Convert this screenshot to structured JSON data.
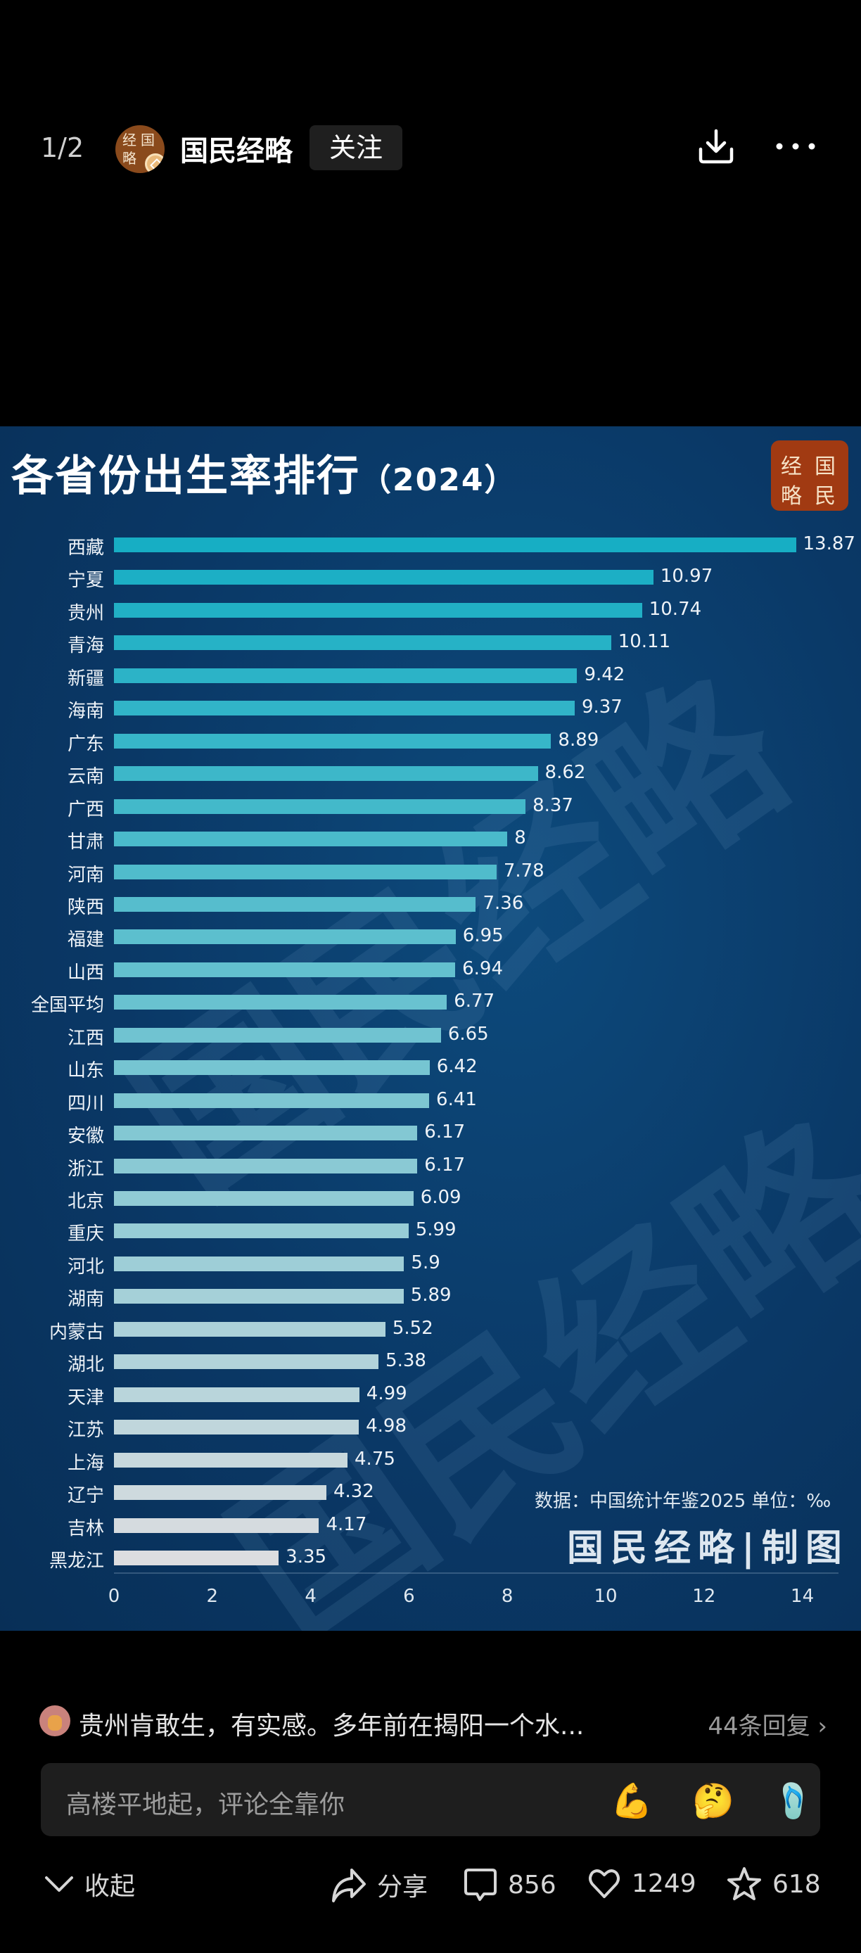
{
  "topbar": {
    "page_indicator": "1/2",
    "avatar_chars": [
      "经",
      "国",
      "略"
    ],
    "author": "国民经略",
    "follow_label": "关注",
    "icons": [
      "download-icon",
      "more-icon"
    ]
  },
  "chart": {
    "title": "各省份出生率排行",
    "title_year": "（2024）",
    "logo_chars": [
      "经",
      "国",
      "略",
      "民"
    ],
    "source": "数据：中国统计年鉴2025 单位：‰",
    "maker": "国民经略|制图",
    "watermark": "国民经略",
    "colors": {
      "background": "#0a3866",
      "bar_top": "#17aec4",
      "bar_bottom": "#dcdde0"
    }
  },
  "chart_data": {
    "type": "bar",
    "orientation": "horizontal",
    "title": "各省份出生率排行（2024）",
    "xlabel": "",
    "ylabel": "",
    "unit": "‰",
    "source": "数据：中国统计年鉴2025",
    "xlim": [
      0,
      14
    ],
    "xticks": [
      0,
      2,
      4,
      6,
      8,
      10,
      12,
      14
    ],
    "grid": false,
    "legend": null,
    "categories": [
      "西藏",
      "宁夏",
      "贵州",
      "青海",
      "新疆",
      "海南",
      "广东",
      "云南",
      "广西",
      "甘肃",
      "河南",
      "陕西",
      "福建",
      "山西",
      "全国平均",
      "江西",
      "山东",
      "四川",
      "安徽",
      "浙江",
      "北京",
      "重庆",
      "河北",
      "湖南",
      "内蒙古",
      "湖北",
      "天津",
      "江苏",
      "上海",
      "辽宁",
      "吉林",
      "黑龙江"
    ],
    "values": [
      13.87,
      10.97,
      10.74,
      10.11,
      9.42,
      9.37,
      8.89,
      8.62,
      8.37,
      8,
      7.78,
      7.36,
      6.95,
      6.94,
      6.77,
      6.65,
      6.42,
      6.41,
      6.17,
      6.17,
      6.09,
      5.99,
      5.9,
      5.89,
      5.52,
      5.38,
      4.99,
      4.98,
      4.75,
      4.32,
      4.17,
      3.35
    ],
    "value_labels": [
      "13.87",
      "10.97",
      "10.74",
      "10.11",
      "9.42",
      "9.37",
      "8.89",
      "8.62",
      "8.37",
      "8",
      "7.78",
      "7.36",
      "6.95",
      "6.94",
      "6.77",
      "6.65",
      "6.42",
      "6.41",
      "6.17",
      "6.17",
      "6.09",
      "5.99",
      "5.9",
      "5.89",
      "5.52",
      "5.38",
      "4.99",
      "4.98",
      "4.75",
      "4.32",
      "4.17",
      "3.35"
    ]
  },
  "comment": {
    "text": "贵州肯敢生，有实感。多年前在揭阳一个水...",
    "replies": "44条回复 ›"
  },
  "input": {
    "placeholder": "高楼平地起，评论全靠你",
    "emojis": [
      "💪",
      "🤔",
      "🩴"
    ]
  },
  "actions": {
    "collapse": "收起",
    "share": "分享",
    "comments": "856",
    "likes": "1249",
    "favorites": "618"
  }
}
